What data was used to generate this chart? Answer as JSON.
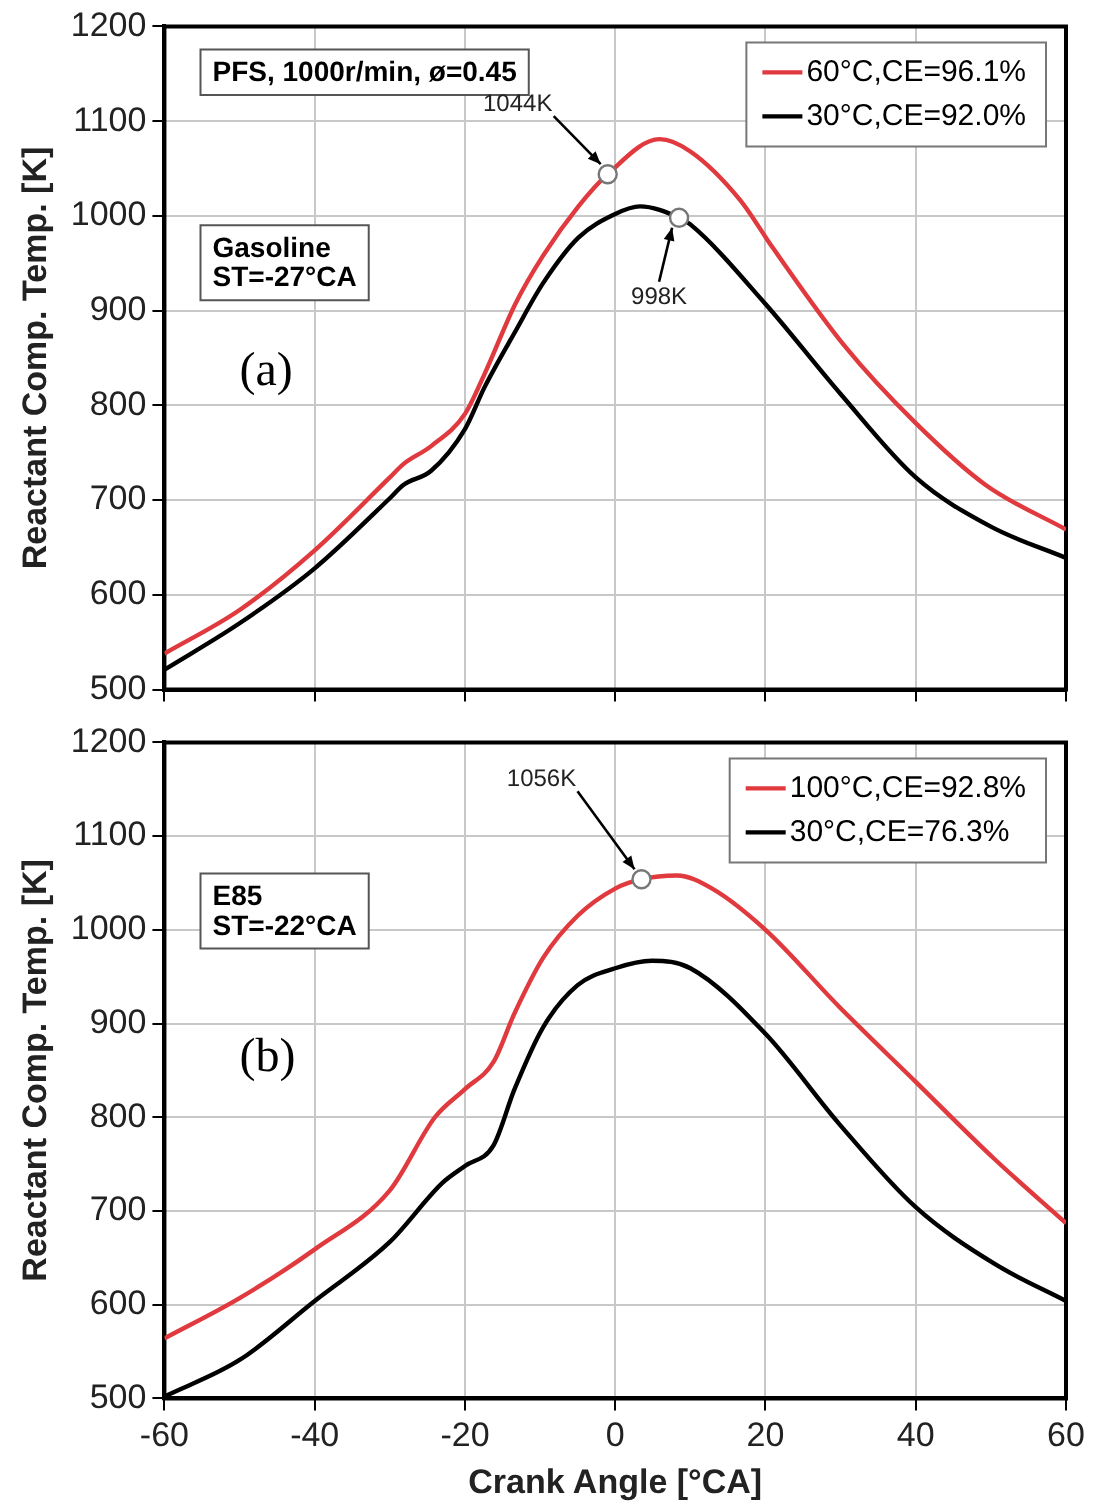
{
  "chart_data": [
    {
      "type": "line",
      "ylabel": "Reactant Comp. Temp. [K]",
      "xlim": [
        -60,
        60
      ],
      "xticks": [
        -60,
        -40,
        -20,
        0,
        20,
        40,
        60
      ],
      "ylim": [
        500,
        1200
      ],
      "yticks": [
        500,
        600,
        700,
        800,
        900,
        1000,
        1100,
        1200
      ],
      "grid": true,
      "legend": "top right",
      "tick_labels": "y",
      "marker": "none",
      "line_style": "solid",
      "annotations": [
        "PFS, 1000r/min, ø=0.45",
        "Gasoline\nST=-27°CA",
        "(a)",
        {
          "text": "1044K",
          "x": -1,
          "y": 1044
        },
        {
          "text": "998K",
          "x": 8.5,
          "y": 998
        }
      ],
      "series": [
        {
          "name": "60°C,CE=96.1%",
          "color": "#e0393e",
          "x": [
            -60,
            -50,
            -40,
            -30,
            -28.2,
            -24.5,
            -20,
            -17.4,
            -13.3,
            -9.6,
            -4.9,
            -1,
            5.9,
            10,
            16.6,
            21,
            30.5,
            39.9,
            49.3,
            60
          ],
          "values": [
            538,
            584,
            647,
            724,
            738,
            757,
            791,
            833,
            907,
            958,
            1010,
            1044,
            1081,
            1068,
            1017,
            966,
            863,
            782,
            716,
            669
          ]
        },
        {
          "name": "30°C,CE=92.0%",
          "color": "#000000",
          "x": [
            -60,
            -50,
            -40,
            -30,
            -28.2,
            -24.5,
            -20,
            -17.4,
            -13.3,
            -9.6,
            -4.9,
            0,
            3.3,
            8.5,
            10,
            20,
            30,
            40,
            50,
            60
          ],
          "values": [
            521,
            570,
            628,
            702,
            716,
            731,
            775,
            819,
            878,
            929,
            977,
            1002,
            1010,
            998,
            991,
            907,
            812,
            724,
            672,
            639
          ]
        }
      ]
    },
    {
      "type": "line",
      "xlabel": "Crank Angle [°CA]",
      "ylabel": "Reactant Comp. Temp. [K]",
      "xlim": [
        -60,
        60
      ],
      "xticks": [
        -60,
        -40,
        -20,
        0,
        20,
        40,
        60
      ],
      "ylim": [
        500,
        1200
      ],
      "yticks": [
        500,
        600,
        700,
        800,
        900,
        1000,
        1100,
        1200
      ],
      "grid": true,
      "legend": "top right",
      "marker": "none",
      "line_style": "solid",
      "annotations": [
        "E85\nST=-22°CA",
        "(b)",
        {
          "text": "1056K",
          "x": 3.5,
          "y": 1054
        }
      ],
      "series": [
        {
          "name": "100°C,CE=92.8%",
          "color": "#e0393e",
          "x": [
            -60,
            -50,
            -40,
            -30,
            -24,
            -20,
            -16.2,
            -13.4,
            -9.6,
            -5,
            0,
            3.5,
            8.2,
            12.9,
            20,
            29.8,
            40.1,
            50.4,
            60
          ],
          "values": [
            564,
            607,
            659,
            722,
            800,
            830,
            859,
            911,
            970,
            1015,
            1044,
            1054,
            1058,
            1044,
            1000,
            918,
            837,
            756,
            687
          ]
        },
        {
          "name": "30°C,CE=76.3%",
          "color": "#000000",
          "x": [
            -60,
            -50,
            -40,
            -30,
            -23,
            -20,
            -16.2,
            -13.4,
            -9.6,
            -5,
            0,
            4.9,
            10,
            20,
            29.8,
            40,
            50.4,
            60
          ],
          "values": [
            502,
            541,
            604,
            667,
            730,
            748,
            770,
            830,
            896,
            941,
            959,
            967,
            959,
            889,
            793,
            704,
            644,
            604
          ]
        }
      ]
    }
  ]
}
